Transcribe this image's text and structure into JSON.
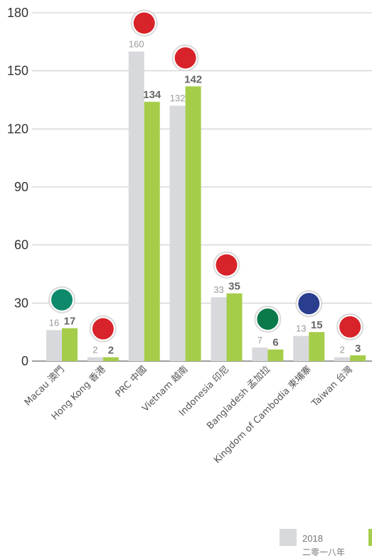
{
  "chart_data": {
    "type": "bar",
    "categories": [
      "Macau 澳門",
      "Hong Kong 香港",
      "PRC 中國",
      "Vietnam 越南",
      "Indonesia 印尼",
      "Bangladesh 孟加拉",
      "Kingdom of Cambodia 柬埔寨",
      "Taiwan 台灣"
    ],
    "flag_icons": [
      "macau-flag-icon",
      "hong-kong-flag-icon",
      "china-flag-icon",
      "vietnam-flag-icon",
      "indonesia-flag-icon",
      "bangladesh-flag-icon",
      "cambodia-flag-icon",
      "taiwan-flag-icon"
    ],
    "series": [
      {
        "name": "2018 二零一八年",
        "color": "#d8d9dc",
        "values": [
          16,
          2,
          160,
          132,
          33,
          7,
          13,
          2
        ]
      },
      {
        "color": "#a5cd4a",
        "values": [
          17,
          2,
          134,
          142,
          35,
          6,
          15,
          3
        ]
      }
    ],
    "yticks": [
      0,
      30,
      60,
      90,
      120,
      150,
      180
    ],
    "ylim": [
      0,
      180
    ],
    "grid": true,
    "legend_position": "bottom-right"
  },
  "legend": {
    "year_label": "2018",
    "year_sub": "二零一八年"
  }
}
